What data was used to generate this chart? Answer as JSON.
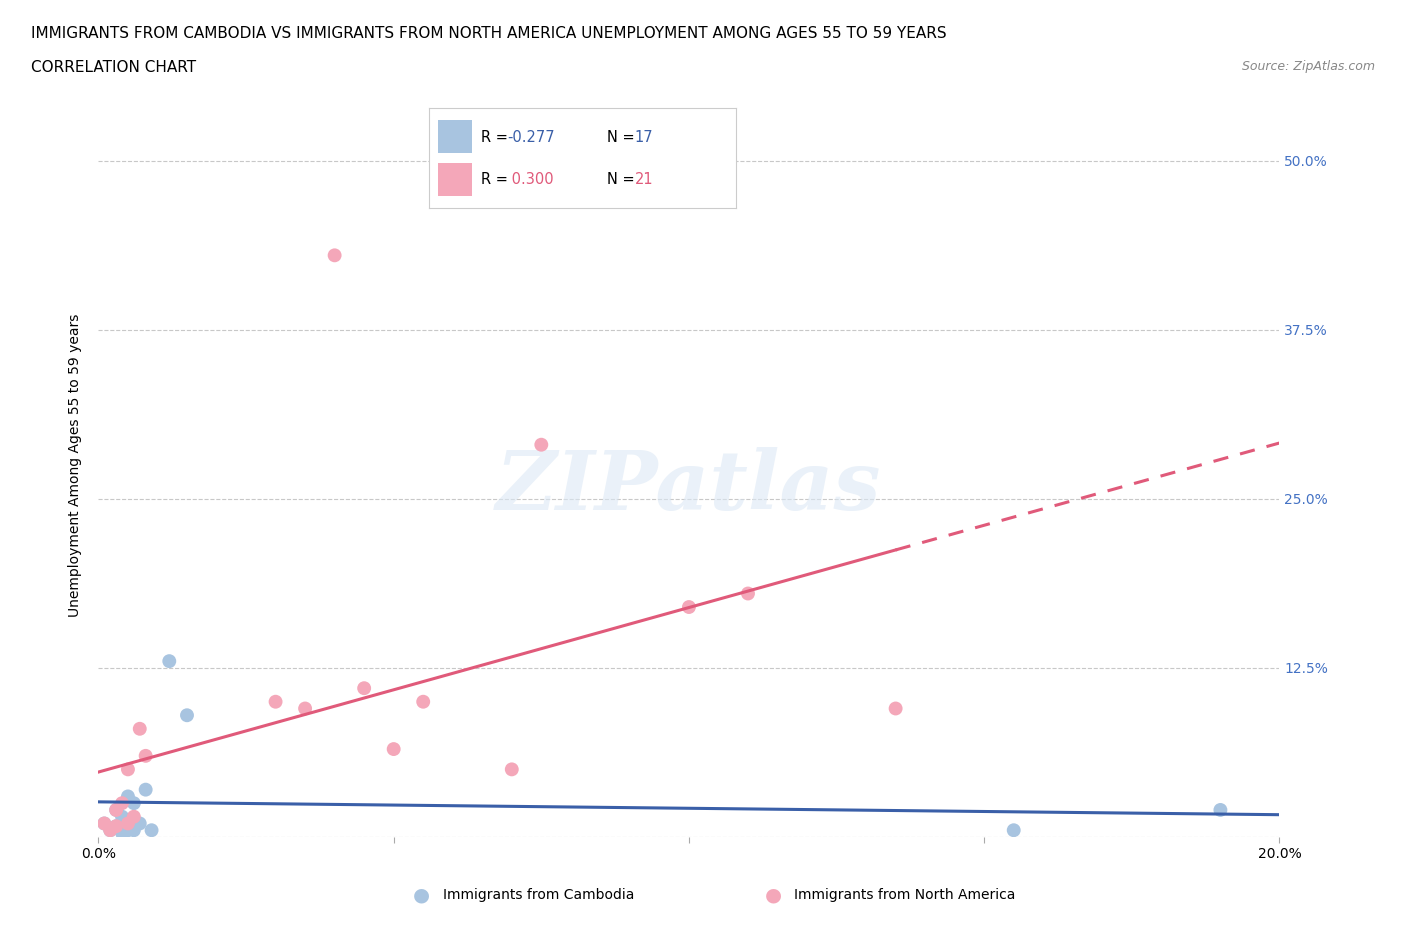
{
  "title_line1": "IMMIGRANTS FROM CAMBODIA VS IMMIGRANTS FROM NORTH AMERICA UNEMPLOYMENT AMONG AGES 55 TO 59 YEARS",
  "title_line2": "CORRELATION CHART",
  "source": "Source: ZipAtlas.com",
  "ylabel": "Unemployment Among Ages 55 to 59 years",
  "xlim": [
    0.0,
    0.2
  ],
  "ylim": [
    0.0,
    0.55
  ],
  "yticks": [
    0.0,
    0.125,
    0.25,
    0.375,
    0.5
  ],
  "ytick_labels": [
    "",
    "12.5%",
    "25.0%",
    "37.5%",
    "50.0%"
  ],
  "xticks": [
    0.0,
    0.05,
    0.1,
    0.15,
    0.2
  ],
  "xtick_labels": [
    "0.0%",
    "",
    "",
    "",
    "20.0%"
  ],
  "cambodia_color": "#a8c4e0",
  "north_america_color": "#f4a7b9",
  "trend_cambodia_color": "#3a5fa8",
  "trend_north_america_color": "#e05a7a",
  "watermark": "ZIPatlas",
  "background_color": "#ffffff",
  "grid_color": "#c8c8c8",
  "cambodia_x": [
    0.001,
    0.002,
    0.003,
    0.003,
    0.004,
    0.004,
    0.005,
    0.005,
    0.006,
    0.006,
    0.007,
    0.008,
    0.009,
    0.012,
    0.015,
    0.155,
    0.19
  ],
  "cambodia_y": [
    0.01,
    0.005,
    0.008,
    0.02,
    0.003,
    0.015,
    0.005,
    0.03,
    0.005,
    0.025,
    0.01,
    0.035,
    0.005,
    0.13,
    0.09,
    0.005,
    0.02
  ],
  "north_america_x": [
    0.001,
    0.002,
    0.003,
    0.003,
    0.004,
    0.005,
    0.005,
    0.006,
    0.007,
    0.008,
    0.03,
    0.035,
    0.04,
    0.045,
    0.05,
    0.055,
    0.07,
    0.075,
    0.1,
    0.11,
    0.135
  ],
  "north_america_y": [
    0.01,
    0.005,
    0.02,
    0.008,
    0.025,
    0.01,
    0.05,
    0.015,
    0.08,
    0.06,
    0.1,
    0.095,
    0.43,
    0.11,
    0.065,
    0.1,
    0.05,
    0.29,
    0.17,
    0.18,
    0.095
  ],
  "title_fontsize": 11,
  "axis_label_fontsize": 10,
  "tick_fontsize": 10,
  "source_fontsize": 9,
  "r_cambodia": "-0.277",
  "n_cambodia": "17",
  "r_north_america": "0.300",
  "n_north_america": "21"
}
